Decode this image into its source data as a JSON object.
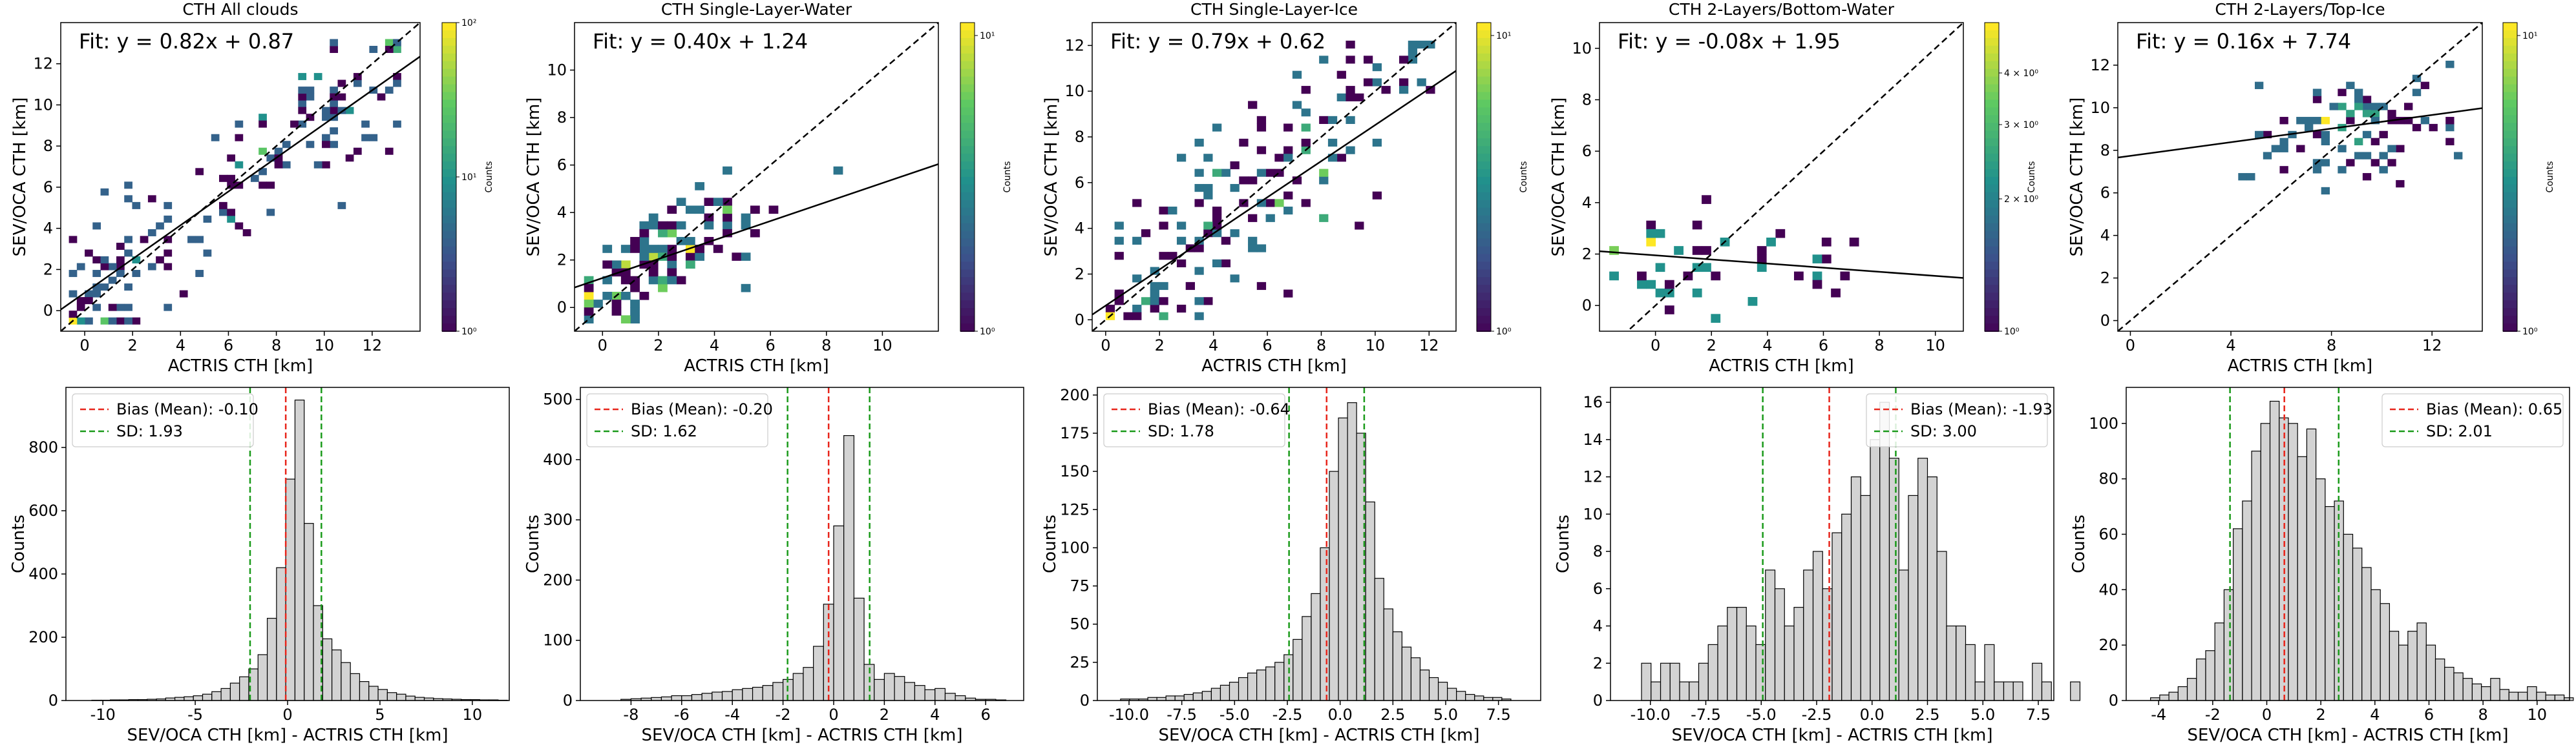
{
  "chart_data": [
    {
      "type": "heatmap",
      "title": "CTH All clouds",
      "xlabel": "ACTRIS CTH [km]",
      "ylabel": "SEV/OCA CTH [km]",
      "xlim": [
        -1,
        14
      ],
      "ylim": [
        -1,
        14
      ],
      "xticks": [
        0,
        2,
        4,
        6,
        8,
        10,
        12
      ],
      "yticks": [
        0,
        2,
        4,
        6,
        8,
        10,
        12
      ],
      "fit_text": "Fit: y = 0.82x + 0.87",
      "fit": {
        "slope": 0.82,
        "intercept": 0.87
      },
      "density": {
        "center": [
          9,
          8
        ],
        "spread": [
          2.8,
          2.3
        ],
        "secondary": [
          1.0,
          1.0
        ],
        "count": 170
      },
      "colorbar": {
        "label": "Counts",
        "ticks": [
          "10²",
          "10¹",
          "10⁰"
        ],
        "scale": "log"
      }
    },
    {
      "type": "heatmap",
      "title": "CTH Single-Layer-Water",
      "xlabel": "ACTRIS CTH [km]",
      "ylabel": "SEV/OCA CTH [km]",
      "xlim": [
        -1,
        12
      ],
      "ylim": [
        -1,
        12
      ],
      "xticks": [
        0,
        2,
        4,
        6,
        8,
        10
      ],
      "yticks": [
        0,
        2,
        4,
        6,
        8,
        10
      ],
      "fit_text": "Fit: y = 0.40x + 1.24",
      "fit": {
        "slope": 0.4,
        "intercept": 1.24
      },
      "density": {
        "center": [
          3,
          3
        ],
        "spread": [
          2.0,
          1.3
        ],
        "secondary": [
          1.0,
          1.0
        ],
        "count": 120
      },
      "colorbar": {
        "label": "Counts",
        "ticks": [
          "10¹",
          "10⁰"
        ],
        "scale": "log"
      }
    },
    {
      "type": "heatmap",
      "title": "CTH Single-Layer-Ice",
      "xlabel": "ACTRIS CTH [km]",
      "ylabel": "SEV/OCA CTH [km]",
      "xlim": [
        -0.5,
        13
      ],
      "ylim": [
        -0.5,
        13
      ],
      "xticks": [
        0,
        2,
        4,
        6,
        8,
        10,
        12
      ],
      "yticks": [
        0,
        2,
        4,
        6,
        8,
        10,
        12
      ],
      "fit_text": "Fit: y = 0.79x + 0.62",
      "fit": {
        "slope": 0.79,
        "intercept": 0.62
      },
      "density": {
        "center": [
          7,
          7
        ],
        "spread": [
          2.8,
          2.8
        ],
        "secondary": [
          2.5,
          2.2
        ],
        "count": 150
      },
      "colorbar": {
        "label": "Counts",
        "ticks": [
          "10¹",
          "10⁰"
        ],
        "scale": "log"
      }
    },
    {
      "type": "heatmap",
      "title": "CTH 2-Layers/Bottom-Water",
      "xlabel": "ACTRIS CTH [km]",
      "ylabel": "SEV/OCA CTH [km]",
      "xlim": [
        -2,
        11
      ],
      "ylim": [
        -1,
        11
      ],
      "xticks": [
        0,
        2,
        4,
        6,
        8,
        10
      ],
      "yticks": [
        0,
        2,
        4,
        6,
        8,
        10
      ],
      "fit_text": "Fit: y = -0.08x + 1.95",
      "fit": {
        "slope": -0.08,
        "intercept": 1.95
      },
      "density": {
        "center": [
          3,
          1.8
        ],
        "spread": [
          2.6,
          1.0
        ],
        "secondary": [
          1.2,
          1.5
        ],
        "count": 45
      },
      "colorbar": {
        "label": "Counts",
        "ticks": [
          "4 × 10⁰",
          "3 × 10⁰",
          "2 × 10⁰",
          "10⁰"
        ],
        "scale": "log"
      }
    },
    {
      "type": "heatmap",
      "title": "CTH 2-Layers/Top-Ice",
      "xlabel": "ACTRIS CTH [km]",
      "ylabel": "SEV/OCA CTH [km]",
      "xlim": [
        -0.5,
        14
      ],
      "ylim": [
        -0.5,
        14
      ],
      "xticks": [
        0,
        4,
        8,
        12
      ],
      "yticks": [
        0,
        2,
        4,
        6,
        8,
        10,
        12
      ],
      "fit_text": "Fit: y = 0.16x + 7.74",
      "fit": {
        "slope": 0.16,
        "intercept": 7.74
      },
      "density": {
        "center": [
          9,
          9
        ],
        "spread": [
          2.0,
          1.2
        ],
        "secondary": [
          9,
          9
        ],
        "count": 90
      },
      "colorbar": {
        "label": "Counts",
        "ticks": [
          "10¹",
          "10⁰"
        ],
        "scale": "log"
      }
    },
    {
      "type": "bar",
      "title": "",
      "xlabel": "SEV/OCA CTH [km] - ACTRIS CTH [km]",
      "ylabel": "Counts",
      "xlim": [
        -12,
        12
      ],
      "ylim": [
        0,
        990
      ],
      "xticks": [
        -10,
        -5,
        0,
        5,
        10
      ],
      "yticks": [
        0,
        200,
        400,
        600,
        800
      ],
      "bin_start": -10.6,
      "bin_width": 0.5,
      "values": [
        1,
        1,
        2,
        2,
        3,
        3,
        4,
        5,
        8,
        10,
        12,
        15,
        20,
        28,
        38,
        55,
        75,
        100,
        145,
        260,
        420,
        700,
        950,
        560,
        300,
        195,
        160,
        120,
        85,
        60,
        45,
        35,
        25,
        20,
        14,
        10,
        8,
        6,
        5,
        4,
        3,
        3,
        2,
        2,
        1
      ],
      "bias": -0.1,
      "sd": 1.93,
      "legend": [
        "Bias (Mean): -0.10",
        "SD: 1.93"
      ],
      "legend_position": "top-left"
    },
    {
      "type": "bar",
      "title": "",
      "xlabel": "SEV/OCA CTH [km] - ACTRIS CTH [km]",
      "ylabel": "Counts",
      "xlim": [
        -10,
        7.5
      ],
      "ylim": [
        0,
        520
      ],
      "xticks": [
        -8,
        -6,
        -4,
        -2,
        0,
        2,
        4,
        6
      ],
      "yticks": [
        0,
        100,
        200,
        300,
        400,
        500
      ],
      "bin_start": -8.4,
      "bin_width": 0.4,
      "values": [
        2,
        3,
        4,
        5,
        6,
        8,
        8,
        10,
        12,
        14,
        15,
        18,
        20,
        22,
        25,
        30,
        35,
        45,
        55,
        90,
        160,
        290,
        440,
        170,
        60,
        35,
        45,
        40,
        30,
        25,
        18,
        20,
        12,
        8,
        4,
        2,
        2,
        1
      ],
      "bias": -0.2,
      "sd": 1.62,
      "legend": [
        "Bias (Mean): -0.20",
        "SD: 1.62"
      ],
      "legend_position": "top-left"
    },
    {
      "type": "bar",
      "title": "",
      "xlabel": "SEV/OCA CTH [km] - ACTRIS CTH [km]",
      "ylabel": "Counts",
      "xlim": [
        -11.5,
        9.5
      ],
      "ylim": [
        0,
        205
      ],
      "xticks": [
        -10.0,
        -7.5,
        -5.0,
        -2.5,
        0.0,
        2.5,
        5.0,
        7.5
      ],
      "yticks": [
        0,
        25,
        50,
        75,
        100,
        125,
        150,
        175,
        200
      ],
      "bin_start": -10.4,
      "bin_width": 0.43,
      "values": [
        1,
        1,
        1,
        2,
        2,
        3,
        3,
        4,
        5,
        6,
        8,
        10,
        12,
        15,
        18,
        20,
        22,
        25,
        30,
        40,
        55,
        70,
        100,
        150,
        185,
        195,
        175,
        130,
        80,
        60,
        45,
        35,
        28,
        20,
        15,
        12,
        8,
        6,
        4,
        3,
        2,
        2,
        1
      ],
      "bias": -0.64,
      "sd": 1.78,
      "legend": [
        "Bias (Mean): -0.64",
        "SD: 1.78"
      ],
      "legend_position": "top-left"
    },
    {
      "type": "bar",
      "title": "",
      "xlabel": "SEV/OCA CTH [km] - ACTRIS CTH [km]",
      "ylabel": "Counts",
      "xlim": [
        -11.8,
        8.2
      ],
      "ylim": [
        0,
        16.8
      ],
      "xticks": [
        -10.0,
        -7.5,
        -5.0,
        -2.5,
        0.0,
        2.5,
        5.0,
        7.5
      ],
      "yticks": [
        0,
        2,
        4,
        6,
        8,
        10,
        12,
        14,
        16
      ],
      "bin_start": -10.4,
      "bin_width": 0.43,
      "values": [
        2,
        1,
        2,
        2,
        1,
        1,
        2,
        3,
        4,
        5,
        5,
        4,
        3,
        7,
        6,
        4,
        5,
        7,
        8,
        6,
        9,
        10,
        12,
        11,
        14,
        16,
        13,
        7,
        11,
        13,
        12,
        8,
        4,
        4,
        3,
        1,
        3,
        1,
        1,
        1,
        0,
        2,
        1,
        0,
        0,
        1
      ],
      "bias": -1.93,
      "sd": 3.0,
      "legend": [
        "Bias (Mean): -1.93",
        "SD: 3.00"
      ],
      "legend_position": "top-right"
    },
    {
      "type": "bar",
      "title": "",
      "xlabel": "SEV/OCA CTH [km] - ACTRIS CTH [km]",
      "ylabel": "Counts",
      "xlim": [
        -5.2,
        11.2
      ],
      "ylim": [
        0,
        113
      ],
      "xticks": [
        -4,
        -2,
        0,
        2,
        4,
        6,
        8,
        10
      ],
      "yticks": [
        0,
        20,
        40,
        60,
        80,
        100
      ],
      "bin_start": -4.3,
      "bin_width": 0.34,
      "values": [
        1,
        2,
        3,
        5,
        8,
        15,
        18,
        28,
        40,
        62,
        72,
        90,
        100,
        108,
        102,
        100,
        88,
        98,
        80,
        70,
        72,
        60,
        55,
        48,
        40,
        35,
        25,
        20,
        25,
        28,
        20,
        15,
        12,
        10,
        8,
        6,
        5,
        8,
        4,
        3,
        3,
        5,
        3,
        2,
        2,
        1
      ],
      "bias": 0.65,
      "sd": 2.01,
      "legend": [
        "Bias (Mean): 0.65",
        "SD: 2.01"
      ],
      "legend_position": "top-right"
    }
  ]
}
